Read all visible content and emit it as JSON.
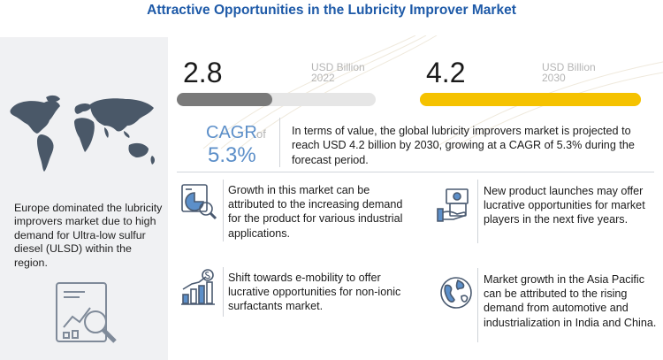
{
  "title": "Attractive Opportunities in the Lubricity Improver Market",
  "left_panel": {
    "map_icon": "world-map-icon",
    "text": "Europe dominated the lubricity improvers market due to high demand for Ultra-low sulfur diesel (ULSD) within the region.",
    "analysis_icon": "chart-magnifier-icon"
  },
  "market_size": {
    "start": {
      "value": "2.8",
      "unit": "USD Billion",
      "year": "2022",
      "bar_fraction": 0.48
    },
    "end": {
      "value": "4.2",
      "unit": "USD Billion",
      "year": "2030",
      "bar_fraction": 1.0
    }
  },
  "cagr": {
    "label": "CAGR",
    "of": "of",
    "value": "5.3%",
    "description": "In terms of value, the global lubricity improvers  market is projected to reach USD 4.2 billion by 2030, growing at a CAGR of 5.3% during the forecast period."
  },
  "points": [
    {
      "icon": "pie-chart-magnifier-icon",
      "text": "Growth in this market can be attributed to the increasing demand for the product for various industrial applications."
    },
    {
      "icon": "money-hand-icon",
      "text": "New product launches may offer lucrative opportunities for market players in the next five years."
    },
    {
      "icon": "growth-bars-dollar-icon",
      "text": "Shift towards e-mobility to offer lucrative opportunities for non-ionic surfactants market."
    },
    {
      "icon": "globe-icon",
      "text": "Market growth in the Asia Pacific can be attributed to the rising demand from automotive and industrialization in India and China."
    }
  ],
  "colors": {
    "title_blue": "#1e5aa8",
    "cagr_blue": "#5c8fc9",
    "bar_grey": "#7a7a7a",
    "bar_yellow": "#f5c200",
    "panel_bg": "#f0f1f3"
  }
}
